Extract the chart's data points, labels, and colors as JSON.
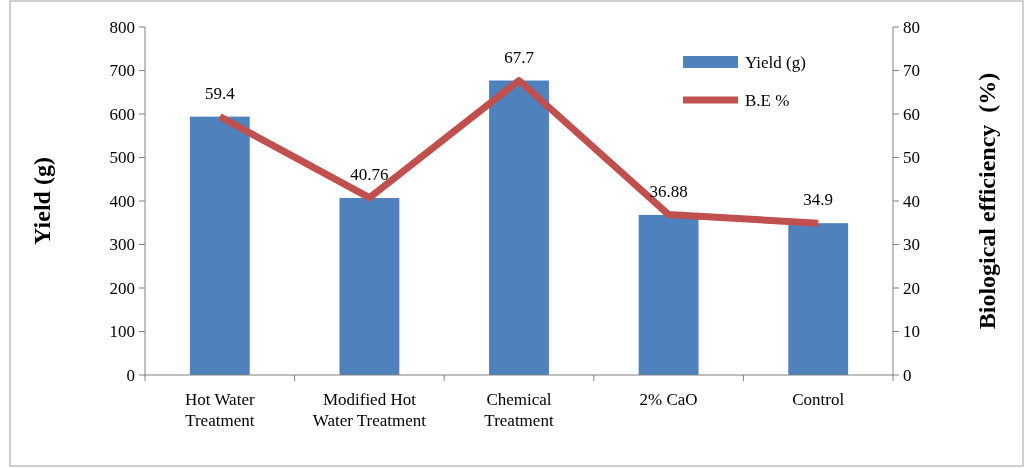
{
  "chart_data": {
    "type": "bar",
    "categories": [
      "Hot Water Treatment",
      "Modified Hot Water Treatment",
      "Chemical Treatment",
      "2% CaO",
      "Control"
    ],
    "series": [
      {
        "name": "Yield (g)",
        "color": "#4f81bd",
        "values": [
          594,
          407,
          677,
          368,
          349
        ]
      },
      {
        "name": "B.E %",
        "type": "line",
        "axis": "y2",
        "color": "#c0504d",
        "values": [
          59.4,
          40.76,
          67.7,
          36.88,
          34.9
        ],
        "value_labels": [
          "59.4",
          "40.76",
          "67.7",
          "36.88",
          "34.9"
        ]
      }
    ],
    "ylabel": "Yield (g)",
    "y2label": "Biological efficiency  (%)",
    "ylim": [
      0,
      800
    ],
    "yticks": [
      0,
      100,
      200,
      300,
      400,
      500,
      600,
      700,
      800
    ],
    "y2lim": [
      0,
      80
    ],
    "y2ticks": [
      0,
      10,
      20,
      30,
      40,
      50,
      60,
      70,
      80
    ],
    "legend": "top right",
    "grid": false,
    "marker": "none"
  }
}
